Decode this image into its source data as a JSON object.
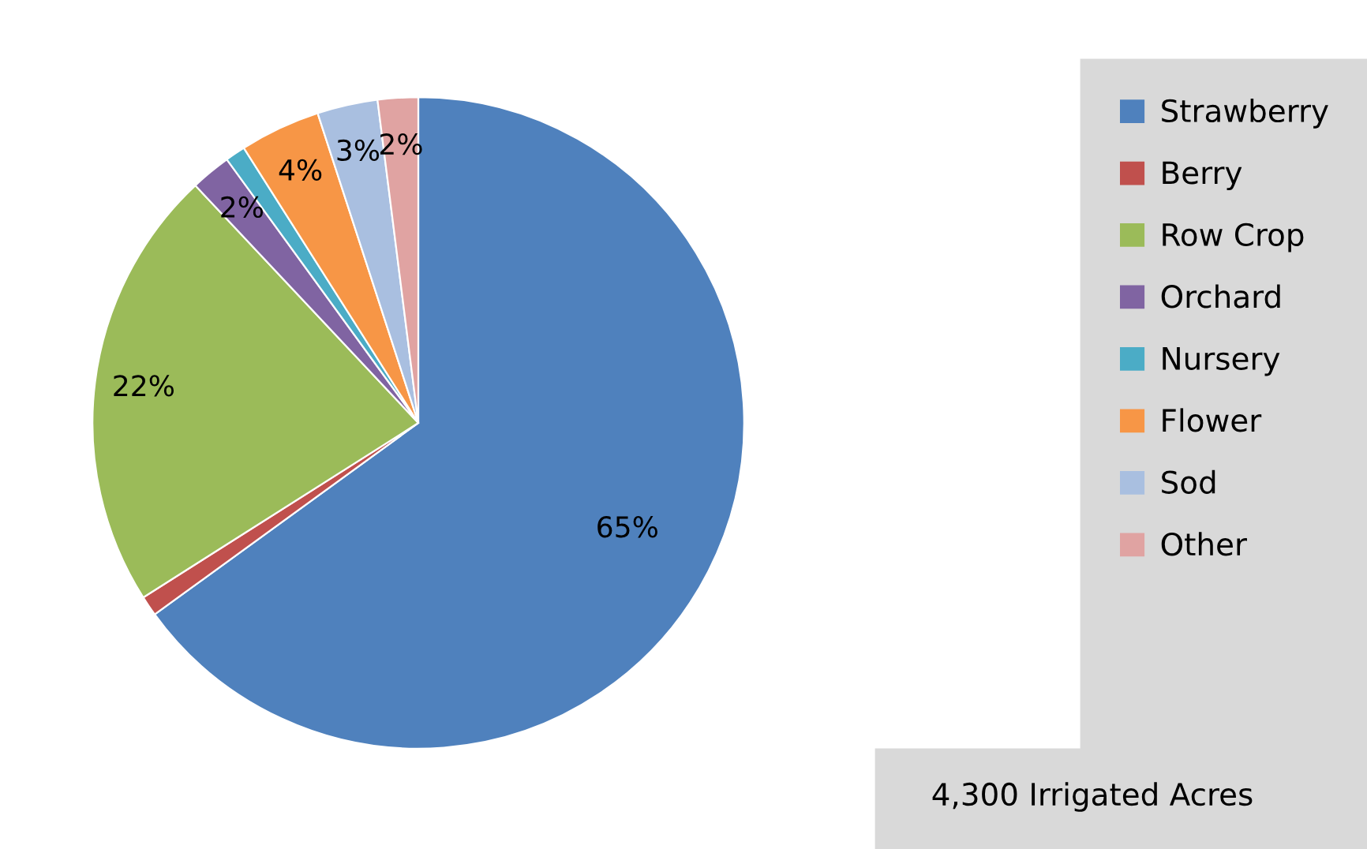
{
  "chart_data": {
    "type": "pie",
    "categories": [
      "Strawberry",
      "Berry",
      "Row Crop",
      "Orchard",
      "Nursery",
      "Flower",
      "Sod",
      "Other"
    ],
    "values": [
      65,
      1,
      22,
      2,
      1,
      4,
      3,
      2
    ],
    "value_labels": [
      "65%",
      null,
      "22%",
      "2%",
      null,
      "4%",
      "3%",
      "2%"
    ],
    "colors": [
      "#4f81bd",
      "#c0504d",
      "#9bbb59",
      "#8064a2",
      "#4bacc6",
      "#f79646",
      "#a9bfe0",
      "#e0a3a2"
    ],
    "legend": "right",
    "annotations": [
      "4,300 Irrigated Acres"
    ]
  }
}
